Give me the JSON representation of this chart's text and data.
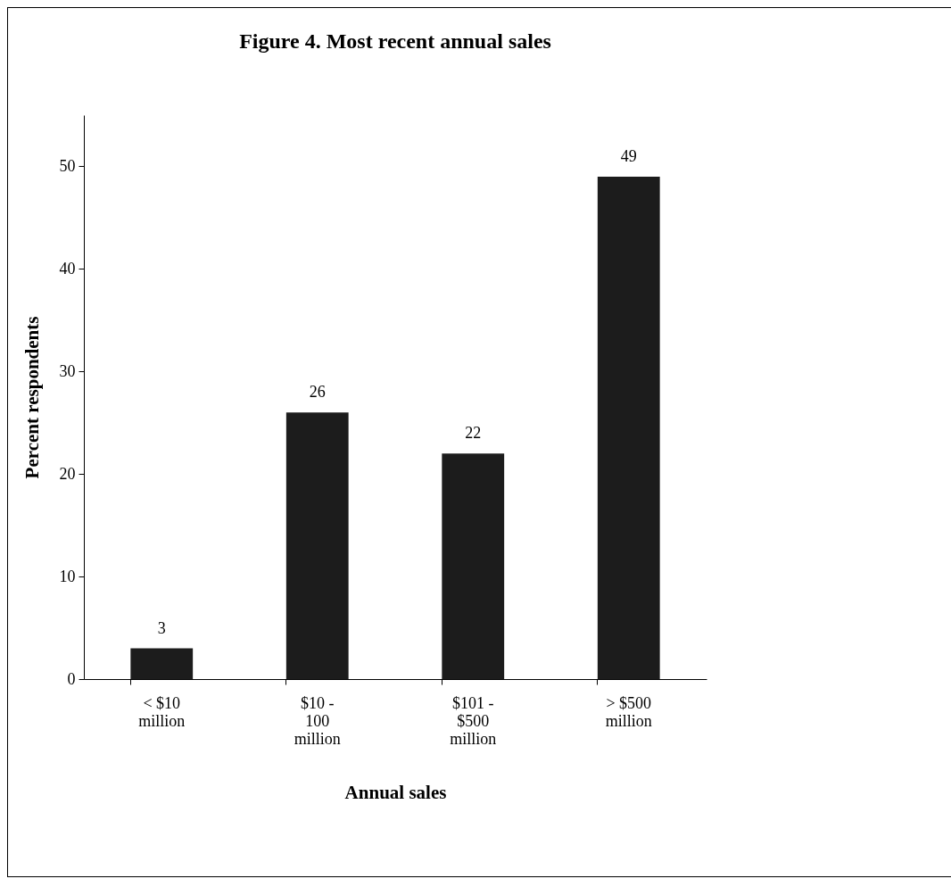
{
  "chart_data": {
    "type": "bar",
    "title": "Figure 4.  Most recent annual sales",
    "xlabel": "Annual sales",
    "ylabel": "Percent respondents",
    "categories": [
      "< $10 million",
      "$10 - 100 million",
      "$101 - $500 million",
      "> $500 million"
    ],
    "values": [
      3,
      26,
      22,
      49
    ],
    "color": "#1c1c1c",
    "ylim": [
      0,
      55
    ],
    "yticks": [
      0,
      10,
      20,
      30,
      40,
      50
    ],
    "grid": false,
    "data_labels": true
  }
}
